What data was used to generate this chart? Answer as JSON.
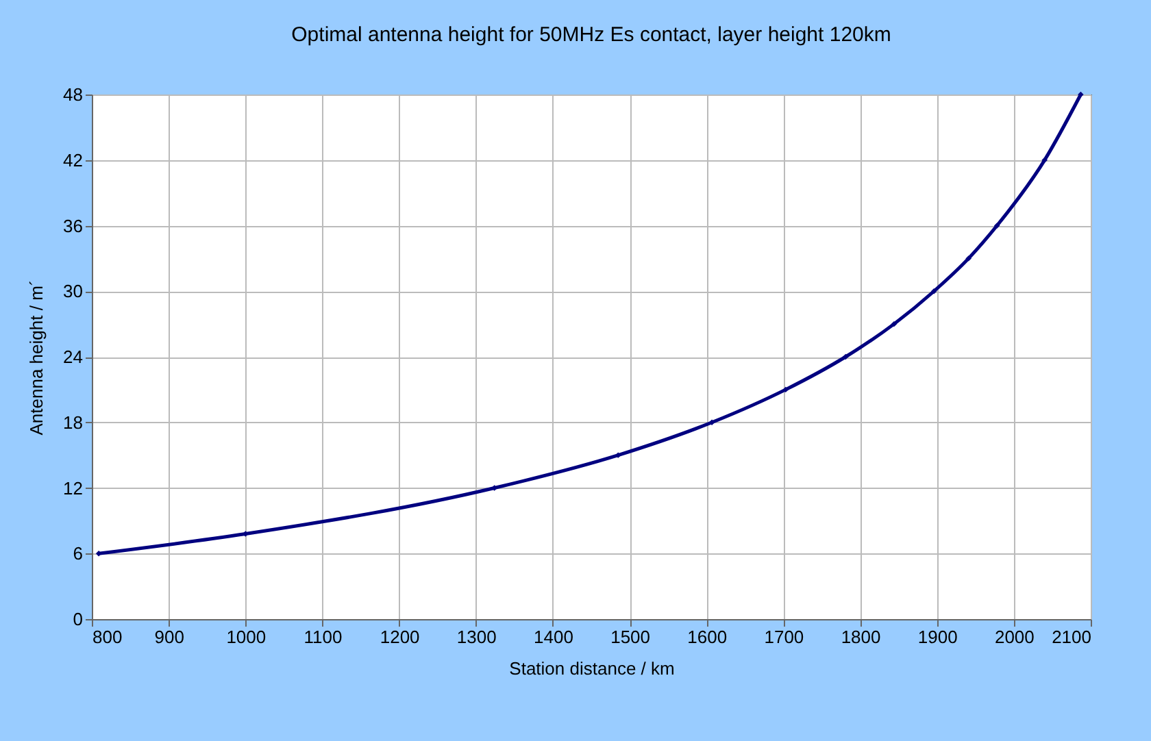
{
  "chart_data": {
    "type": "line",
    "title": "Optimal antenna height for 50MHz Es contact, layer height 120km",
    "xlabel": "Station distance / km",
    "ylabel": "Antenna height / m´",
    "x": [
      809,
      1000,
      1324,
      1485,
      1607,
      1703,
      1781,
      1844,
      1896,
      1941,
      1978,
      2040,
      2087
    ],
    "series": [
      {
        "color": "#000080",
        "values": [
          6,
          7.8,
          12,
          15,
          18,
          21,
          24,
          27,
          30,
          33,
          36,
          42,
          48
        ]
      }
    ],
    "xlim": [
      800,
      2100
    ],
    "xticks": [
      800,
      900,
      1000,
      1100,
      1200,
      1300,
      1400,
      1500,
      1600,
      1700,
      1800,
      1900,
      2000,
      2100
    ],
    "ylim": [
      0,
      48
    ],
    "yticks": [
      0,
      6,
      12,
      18,
      24,
      30,
      36,
      42,
      48
    ],
    "grid": true,
    "marker": "diamond",
    "line_style": "solid"
  }
}
